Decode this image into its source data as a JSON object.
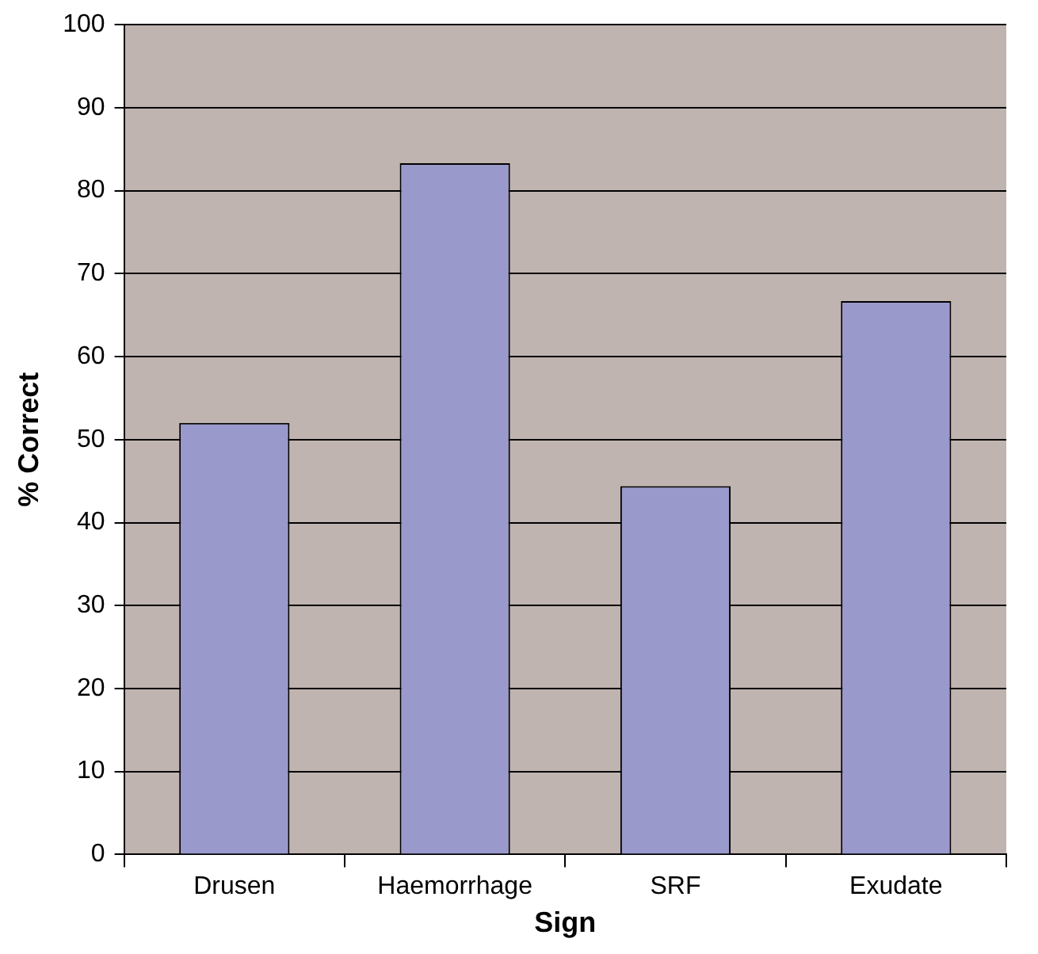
{
  "chart_data": {
    "type": "bar",
    "xlabel": "Sign",
    "ylabel": "% Correct",
    "categories": [
      "Drusen",
      "Haemorrhage",
      "SRF",
      "Exudate"
    ],
    "values": [
      52,
      83.3,
      44.4,
      66.7
    ],
    "color": "#9999cc",
    "ylim": [
      0,
      100
    ],
    "yticks": [
      0,
      10,
      20,
      30,
      40,
      50,
      60,
      70,
      80,
      90,
      100
    ],
    "grid": "y",
    "legend": false
  }
}
